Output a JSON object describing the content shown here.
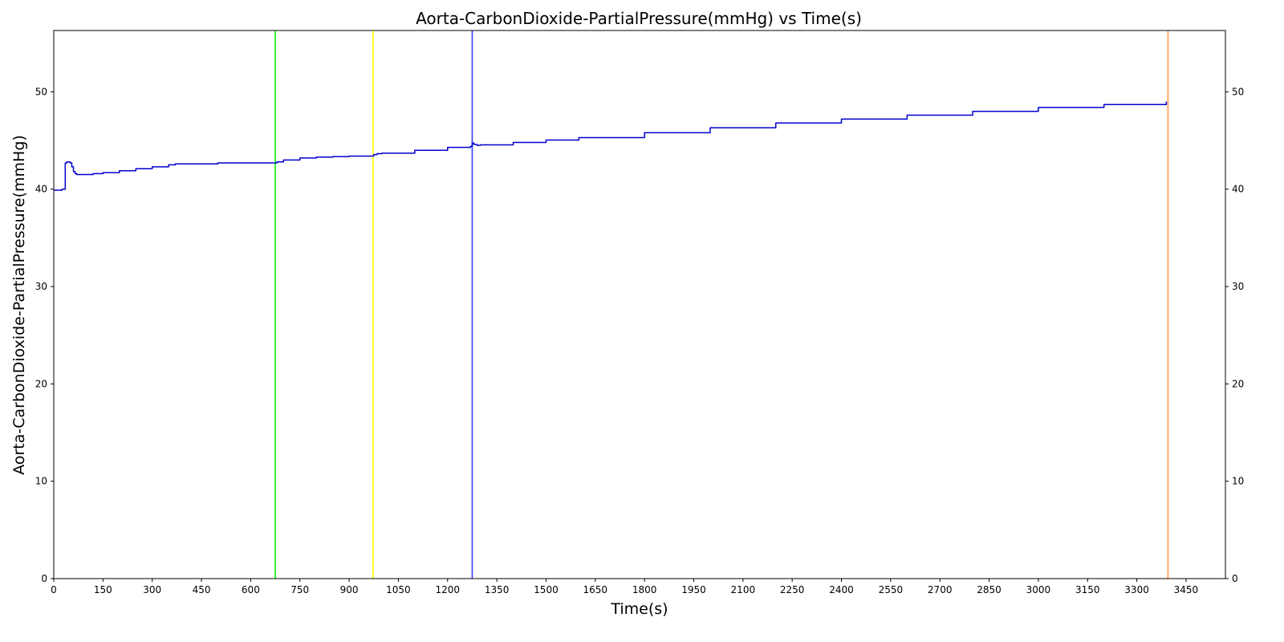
{
  "chart_data": {
    "type": "line",
    "title": "Aorta-CarbonDioxide-PartialPressure(mmHg) vs Time(s)",
    "xlabel": "Time(s)",
    "ylabel": "Aorta-CarbonDioxide-PartialPressure(mmHg)",
    "xlim": [
      0,
      3570
    ],
    "ylim": [
      0,
      56.3
    ],
    "x_ticks": [
      0,
      150,
      300,
      450,
      600,
      750,
      900,
      1050,
      1200,
      1350,
      1500,
      1650,
      1800,
      1950,
      2100,
      2250,
      2400,
      2550,
      2700,
      2850,
      3000,
      3150,
      3300,
      3450
    ],
    "y_ticks": [
      0,
      10,
      20,
      30,
      40,
      50
    ],
    "y_ticks_right": true,
    "grid": false,
    "series": [
      {
        "color": "#0000cc",
        "x": [
          0,
          20,
          25,
          30,
          35,
          40,
          45,
          50,
          55,
          60,
          65,
          70,
          80,
          100,
          120,
          150,
          200,
          250,
          300,
          350,
          370,
          400,
          450,
          500,
          550,
          600,
          675,
          680,
          700,
          750,
          800,
          850,
          900,
          970,
          975,
          985,
          1000,
          1100,
          1200,
          1270,
          1275,
          1280,
          1290,
          1300,
          1400,
          1500,
          1600,
          1800,
          2000,
          2200,
          2400,
          2600,
          2800,
          3000,
          3200,
          3390
        ],
        "y": [
          39.9,
          39.9,
          40.0,
          40.0,
          42.7,
          42.8,
          42.8,
          42.7,
          42.3,
          41.8,
          41.6,
          41.5,
          41.5,
          41.5,
          41.6,
          41.7,
          41.9,
          42.1,
          42.3,
          42.5,
          42.6,
          42.6,
          42.6,
          42.7,
          42.7,
          42.7,
          42.7,
          42.8,
          43.0,
          43.2,
          43.3,
          43.35,
          43.4,
          43.4,
          43.55,
          43.65,
          43.7,
          44.0,
          44.3,
          44.4,
          44.75,
          44.6,
          44.5,
          44.55,
          44.8,
          45.05,
          45.3,
          45.8,
          46.3,
          46.8,
          47.2,
          47.6,
          48.0,
          48.4,
          48.7,
          49.0
        ]
      }
    ],
    "vertical_lines": [
      {
        "x": 675,
        "color": "#00ee00"
      },
      {
        "x": 973,
        "color": "#ffff00"
      },
      {
        "x": 1275,
        "color": "#3a3aff"
      },
      {
        "x": 3395,
        "color": "#ff9a55"
      }
    ]
  }
}
